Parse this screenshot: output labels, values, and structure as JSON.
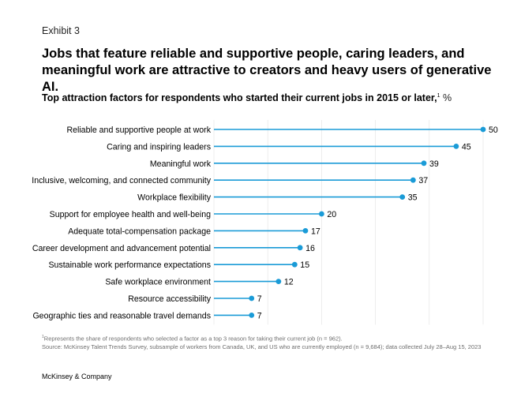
{
  "exhibit_label": "Exhibit 3",
  "headline": "Jobs that feature reliable and supportive people, caring leaders, and meaningful work are attractive to creators and heavy users of generative AI.",
  "subtitle": {
    "text": "Top attraction factors for respondents who started their current jobs in 2015 or later,",
    "footnote_mark": "1",
    "unit": " %"
  },
  "colors": {
    "bar": "#1a9bd7",
    "dot": "#1a9bd7",
    "gridline": "#e1e1e1",
    "label": "#000000"
  },
  "chart_data": {
    "type": "bar",
    "orientation": "horizontal",
    "style": "lollipop",
    "unit": "%",
    "xlim": [
      0,
      50
    ],
    "grid": true,
    "categories": [
      "Reliable and supportive people at work",
      "Caring and inspiring leaders",
      "Meaningful work",
      "Inclusive, welcoming, and connected community",
      "Workplace flexibility",
      "Support for employee health and well-being",
      "Adequate total-compensation package",
      "Career development and advancement potential",
      "Sustainable work performance expectations",
      "Safe workplace environment",
      "Resource accessibility",
      "Geographic ties and reasonable travel demands"
    ],
    "values": [
      50,
      45,
      39,
      37,
      35,
      20,
      17,
      16,
      15,
      12,
      7,
      7
    ]
  },
  "footnotes": {
    "note1_mark": "1",
    "note1": "Represents the share of respondents who selected a factor as a top 3 reason for taking their current job (n = 962).",
    "source": "Source: McKinsey Talent Trends Survey, subsample of workers from Canada, UK, and US who are currently employed (n = 9,684); data collected July 28–Aug 15, 2023"
  },
  "brand": "McKinsey & Company"
}
